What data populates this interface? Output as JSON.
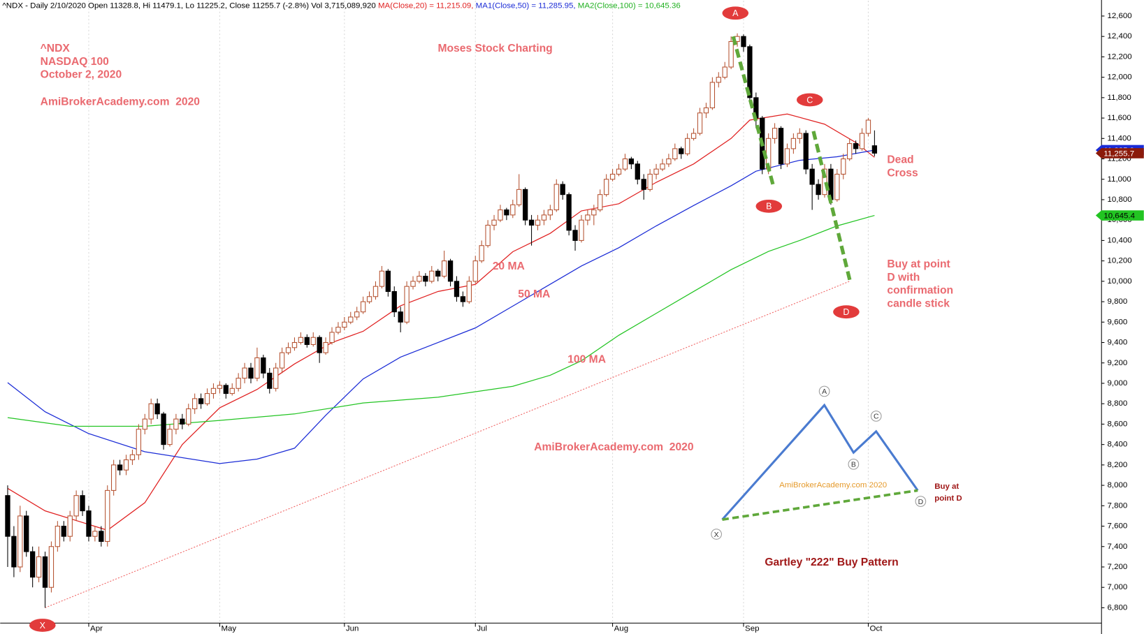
{
  "chart_data": {
    "type": "candlestick",
    "header": [
      {
        "text": "^NDX - Daily 2/10/2020 Open 11328.8, Hi 11479.1, Lo 11225.2, Close 11255.7 (-2.8%) Vol 3,715,089,920 ",
        "color": "#000000"
      },
      {
        "text": "MA(Close,20) = 11,215.09, ",
        "color": "#e02020"
      },
      {
        "text": "MA1(Close,50) = 11,285.95, ",
        "color": "#1a2bd6"
      },
      {
        "text": "MA2(Close,100) = 10,645.36",
        "color": "#20b020"
      }
    ],
    "texts": {
      "symbol": "^NDX",
      "name": "NASDAQ 100",
      "date": "October 2, 2020",
      "site": "AmiBrokerAcademy.com  2020",
      "brand": "Moses Stock Charting",
      "ma20": "20 MA",
      "ma50": "50 MA",
      "ma100": "100 MA",
      "site2": "AmiBrokerAcademy.com  2020",
      "dead1": "Dead",
      "dead2": "Cross",
      "buy1": "Buy at point",
      "buy2": "D with",
      "buy3": "confirmation",
      "buy4": "candle stick"
    },
    "points": [
      "A",
      "B",
      "C",
      "D",
      "X"
    ],
    "inset": {
      "labels": [
        "X",
        "A",
        "B",
        "C",
        "D"
      ],
      "watermark": "AmiBrokerAcademy.com 2020",
      "buy1": "Buy at",
      "buy2": "point D",
      "title": "Gartley \"222\" Buy Pattern"
    },
    "up_color": "#b4502e",
    "down_color": "#000000",
    "ohlc": [
      [
        7900,
        8000,
        7200,
        7500
      ],
      [
        7500,
        7600,
        7100,
        7200
      ],
      [
        7200,
        7800,
        7150,
        7700
      ],
      [
        7700,
        7750,
        7300,
        7350
      ],
      [
        7350,
        7400,
        7000,
        7100
      ],
      [
        7100,
        7400,
        7050,
        7300
      ],
      [
        7300,
        7350,
        6800,
        7000
      ],
      [
        7000,
        7450,
        6950,
        7400
      ],
      [
        7400,
        7650,
        7350,
        7600
      ],
      [
        7600,
        7650,
        7450,
        7500
      ],
      [
        7500,
        7750,
        7450,
        7700
      ],
      [
        7700,
        7950,
        7650,
        7900
      ],
      [
        7900,
        7950,
        7700,
        7750
      ],
      [
        7750,
        7800,
        7450,
        7500
      ],
      [
        7500,
        7600,
        7450,
        7550
      ],
      [
        7550,
        7600,
        7400,
        7450
      ],
      [
        7450,
        8000,
        7400,
        7950
      ],
      [
        7950,
        8250,
        7900,
        8200
      ],
      [
        8200,
        8250,
        8100,
        8150
      ],
      [
        8150,
        8300,
        8100,
        8250
      ],
      [
        8250,
        8350,
        8200,
        8300
      ],
      [
        8300,
        8600,
        8250,
        8550
      ],
      [
        8550,
        8700,
        8500,
        8650
      ],
      [
        8650,
        8850,
        8600,
        8800
      ],
      [
        8800,
        8850,
        8650,
        8700
      ],
      [
        8700,
        8720,
        8350,
        8400
      ],
      [
        8400,
        8600,
        8380,
        8550
      ],
      [
        8550,
        8700,
        8500,
        8650
      ],
      [
        8650,
        8700,
        8550,
        8600
      ],
      [
        8600,
        8800,
        8580,
        8750
      ],
      [
        8750,
        8900,
        8700,
        8850
      ],
      [
        8850,
        8900,
        8750,
        8800
      ],
      [
        8800,
        8950,
        8780,
        8900
      ],
      [
        8900,
        9000,
        8850,
        8950
      ],
      [
        8950,
        9020,
        8900,
        8980
      ],
      [
        8980,
        9000,
        8850,
        8900
      ],
      [
        8900,
        9000,
        8880,
        8950
      ],
      [
        8950,
        9100,
        8920,
        9050
      ],
      [
        9050,
        9200,
        9000,
        9150
      ],
      [
        9150,
        9200,
        9000,
        9050
      ],
      [
        9050,
        9350,
        9020,
        9250
      ],
      [
        9250,
        9280,
        9050,
        9100
      ],
      [
        9100,
        9150,
        8900,
        8950
      ],
      [
        8950,
        9200,
        8920,
        9150
      ],
      [
        9150,
        9350,
        9100,
        9300
      ],
      [
        9300,
        9400,
        9280,
        9350
      ],
      [
        9350,
        9450,
        9320,
        9400
      ],
      [
        9400,
        9500,
        9380,
        9450
      ],
      [
        9450,
        9480,
        9350,
        9380
      ],
      [
        9380,
        9500,
        9360,
        9450
      ],
      [
        9450,
        9470,
        9200,
        9300
      ],
      [
        9300,
        9450,
        9280,
        9400
      ],
      [
        9400,
        9550,
        9380,
        9500
      ],
      [
        9500,
        9600,
        9480,
        9550
      ],
      [
        9550,
        9650,
        9520,
        9600
      ],
      [
        9600,
        9700,
        9580,
        9650
      ],
      [
        9650,
        9750,
        9620,
        9700
      ],
      [
        9700,
        9850,
        9680,
        9800
      ],
      [
        9800,
        9900,
        9780,
        9850
      ],
      [
        9850,
        10000,
        9820,
        9950
      ],
      [
        9950,
        10150,
        9930,
        10100
      ],
      [
        10100,
        10120,
        9850,
        9900
      ],
      [
        9900,
        9950,
        9650,
        9700
      ],
      [
        9700,
        9750,
        9500,
        9600
      ],
      [
        9600,
        10000,
        9580,
        9950
      ],
      [
        9950,
        10050,
        9920,
        10000
      ],
      [
        10000,
        10100,
        9980,
        10050
      ],
      [
        10050,
        10080,
        9950,
        10000
      ],
      [
        10000,
        10150,
        9980,
        10100
      ],
      [
        10100,
        10120,
        10000,
        10050
      ],
      [
        10050,
        10300,
        10030,
        10200
      ],
      [
        10200,
        10220,
        9950,
        10000
      ],
      [
        10000,
        10050,
        9800,
        9850
      ],
      [
        9850,
        9900,
        9750,
        9800
      ],
      [
        9800,
        10050,
        9780,
        10000
      ],
      [
        10000,
        10250,
        9980,
        10200
      ],
      [
        10200,
        10400,
        10180,
        10350
      ],
      [
        10350,
        10600,
        10330,
        10550
      ],
      [
        10550,
        10650,
        10500,
        10600
      ],
      [
        10600,
        10750,
        10580,
        10700
      ],
      [
        10700,
        10720,
        10600,
        10650
      ],
      [
        10650,
        10800,
        10620,
        10750
      ],
      [
        10750,
        11050,
        10730,
        10900
      ],
      [
        10900,
        10920,
        10550,
        10600
      ],
      [
        10600,
        10650,
        10350,
        10550
      ],
      [
        10550,
        10650,
        10500,
        10600
      ],
      [
        10600,
        10700,
        10550,
        10650
      ],
      [
        10650,
        10750,
        10600,
        10700
      ],
      [
        10700,
        11000,
        10680,
        10950
      ],
      [
        10950,
        10980,
        10800,
        10850
      ],
      [
        10850,
        10870,
        10450,
        10500
      ],
      [
        10500,
        10550,
        10300,
        10400
      ],
      [
        10400,
        10650,
        10380,
        10600
      ],
      [
        10600,
        10700,
        10550,
        10650
      ],
      [
        10650,
        10750,
        10550,
        10700
      ],
      [
        10700,
        10900,
        10680,
        10850
      ],
      [
        10850,
        11050,
        10830,
        11000
      ],
      [
        11000,
        11100,
        10980,
        11050
      ],
      [
        11050,
        11150,
        11030,
        11100
      ],
      [
        11100,
        11250,
        11080,
        11200
      ],
      [
        11200,
        11220,
        11100,
        11150
      ],
      [
        11150,
        11180,
        10950,
        11000
      ],
      [
        11000,
        11050,
        10800,
        10900
      ],
      [
        10900,
        11100,
        10880,
        11050
      ],
      [
        11050,
        11150,
        11000,
        11100
      ],
      [
        11100,
        11200,
        11080,
        11150
      ],
      [
        11150,
        11250,
        11120,
        11200
      ],
      [
        11200,
        11350,
        11180,
        11300
      ],
      [
        11300,
        11320,
        11200,
        11250
      ],
      [
        11250,
        11450,
        11230,
        11400
      ],
      [
        11400,
        11500,
        11380,
        11450
      ],
      [
        11450,
        11700,
        11430,
        11650
      ],
      [
        11650,
        11750,
        11600,
        11700
      ],
      [
        11700,
        12000,
        11680,
        11950
      ],
      [
        11950,
        12050,
        11900,
        12000
      ],
      [
        12000,
        12150,
        11980,
        12100
      ],
      [
        12100,
        12400,
        12080,
        12350
      ],
      [
        12350,
        12430,
        12300,
        12400
      ],
      [
        12400,
        12420,
        12250,
        12300
      ],
      [
        12300,
        12320,
        11750,
        11800
      ],
      [
        11800,
        11850,
        11500,
        11600
      ],
      [
        11600,
        11620,
        11050,
        11100
      ],
      [
        11100,
        11450,
        11050,
        11400
      ],
      [
        11400,
        11550,
        11350,
        11500
      ],
      [
        11500,
        11520,
        11100,
        11150
      ],
      [
        11150,
        11350,
        11120,
        11300
      ],
      [
        11300,
        11450,
        11250,
        11400
      ],
      [
        11400,
        11500,
        11350,
        11450
      ],
      [
        11450,
        11480,
        11050,
        11100
      ],
      [
        11100,
        11150,
        10700,
        10950
      ],
      [
        10950,
        11000,
        10800,
        10850
      ],
      [
        10850,
        11150,
        10820,
        11100
      ],
      [
        11100,
        11150,
        10750,
        10800
      ],
      [
        10800,
        11100,
        10780,
        11050
      ],
      [
        11050,
        11250,
        11000,
        11200
      ],
      [
        11200,
        11400,
        11180,
        11350
      ],
      [
        11350,
        11380,
        11250,
        11300
      ],
      [
        11300,
        11500,
        11280,
        11450
      ],
      [
        11450,
        11600,
        11420,
        11580
      ],
      [
        11328.8,
        11479.1,
        11225.2,
        11255.7
      ]
    ],
    "series": [
      {
        "color": "#e02020",
        "x": [
          0,
          6,
          16,
          22,
          28,
          34,
          40,
          46,
          52,
          57,
          63,
          69,
          75,
          81,
          87,
          92,
          98,
          104,
          110,
          116,
          119,
          125,
          131,
          136,
          139
        ],
        "values": [
          7970,
          7750,
          7560,
          7830,
          8400,
          8760,
          8940,
          9190,
          9400,
          9510,
          9760,
          9900,
          9970,
          10290,
          10470,
          10690,
          10760,
          10970,
          11150,
          11400,
          11580,
          11640,
          11540,
          11360,
          11215.09
        ]
      },
      {
        "color": "#1a2bd6",
        "x": [
          0,
          6,
          13,
          22,
          34,
          40,
          46,
          51,
          57,
          63,
          69,
          75,
          81,
          87,
          92,
          98,
          104,
          110,
          116,
          120,
          127,
          133,
          139
        ],
        "values": [
          9007,
          8721,
          8507,
          8329,
          8214,
          8257,
          8364,
          8686,
          9043,
          9257,
          9400,
          9543,
          9757,
          9971,
          10150,
          10329,
          10543,
          10743,
          10936,
          11079,
          11186,
          11221,
          11285.95
        ]
      },
      {
        "color": "#22c422",
        "x": [
          0,
          10,
          22,
          34,
          46,
          57,
          69,
          81,
          87,
          92,
          98,
          104,
          110,
          116,
          122,
          127,
          133,
          139
        ],
        "values": [
          8664,
          8579,
          8579,
          8636,
          8700,
          8807,
          8864,
          8971,
          9079,
          9221,
          9471,
          9686,
          9900,
          10114,
          10293,
          10400,
          10543,
          10645.36
        ]
      }
    ],
    "trend_line": {
      "color": "#f06060",
      "x": [
        6,
        135
      ],
      "values": [
        6800,
        10000
      ]
    },
    "price_tags": [
      {
        "label": "11,285.9",
        "value": 11285.9,
        "color": "#1a2bd6",
        "text_color": "#ffffff"
      },
      {
        "label": "11,255.7",
        "value": 11255.7,
        "color": "#8b1a0a",
        "text_color": "#ffffff"
      },
      {
        "label": "10,645.4",
        "value": 10645.4,
        "color": "#22c422",
        "text_color": "#000000"
      }
    ],
    "xlim": [
      -1.2,
      175.4
    ],
    "xticks": [
      {
        "value": 13,
        "label": "Apr"
      },
      {
        "value": 34,
        "label": "May"
      },
      {
        "value": 54,
        "label": "Jun"
      },
      {
        "value": 75,
        "label": "Jul"
      },
      {
        "value": 97,
        "label": "Aug"
      },
      {
        "value": 118,
        "label": "Sep"
      },
      {
        "value": 138,
        "label": "Oct"
      }
    ],
    "ylim": [
      6650,
      12750
    ],
    "yticks": [
      {
        "value": 6800,
        "label": "6,800"
      },
      {
        "value": 7000,
        "label": "7,000"
      },
      {
        "value": 7200,
        "label": "7,200"
      },
      {
        "value": 7400,
        "label": "7,400"
      },
      {
        "value": 7600,
        "label": "7,600"
      },
      {
        "value": 7800,
        "label": "7,800"
      },
      {
        "value": 8000,
        "label": "8,000"
      },
      {
        "value": 8200,
        "label": "8,200"
      },
      {
        "value": 8400,
        "label": "8,400"
      },
      {
        "value": 8600,
        "label": "8,600"
      },
      {
        "value": 8800,
        "label": "8,800"
      },
      {
        "value": 9000,
        "label": "9,000"
      },
      {
        "value": 9200,
        "label": "9,200"
      },
      {
        "value": 9400,
        "label": "9,400"
      },
      {
        "value": 9600,
        "label": "9,600"
      },
      {
        "value": 9800,
        "label": "9,800"
      },
      {
        "value": 10000,
        "label": "10,000"
      },
      {
        "value": 10200,
        "label": "10,200"
      },
      {
        "value": 10400,
        "label": "10,400"
      },
      {
        "value": 10600,
        "label": "10,600"
      },
      {
        "value": 10800,
        "label": "10,800"
      },
      {
        "value": 11000,
        "label": "11,000"
      },
      {
        "value": 11200,
        "label": "11,200"
      },
      {
        "value": 11400,
        "label": "11,400"
      },
      {
        "value": 11600,
        "label": "11,600"
      },
      {
        "value": 11800,
        "label": "11,800"
      },
      {
        "value": 12000,
        "label": "12,000"
      },
      {
        "value": 12200,
        "label": "12,200"
      },
      {
        "value": 12400,
        "label": "12,400"
      },
      {
        "value": 12600,
        "label": "12,600"
      }
    ]
  }
}
